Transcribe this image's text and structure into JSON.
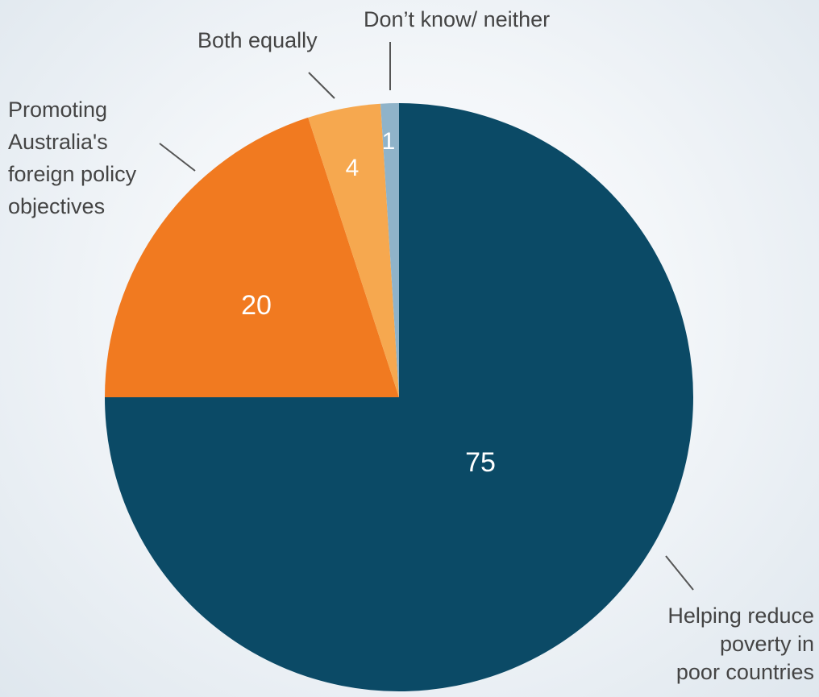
{
  "chart_data": {
    "type": "pie",
    "slices": [
      {
        "label": "Helping reduce poverty in poor countries",
        "label_lines": [
          "Helping reduce",
          "poverty in",
          "poor countries"
        ],
        "value": 75,
        "color": "#0b4a66"
      },
      {
        "label": "Promoting Australia's foreign policy objectives",
        "label_lines": [
          "Promoting",
          "Australia's",
          "foreign policy",
          "objectives"
        ],
        "value": 20,
        "color": "#f17a20"
      },
      {
        "label": "Both equally",
        "label_lines": [
          "Both equally"
        ],
        "value": 4,
        "color": "#f6a84f"
      },
      {
        "label": "Don't know/ neither",
        "label_lines": [
          "Don’t know/ neither"
        ],
        "value": 1,
        "color": "#8fb3c9"
      }
    ],
    "data_labels": [
      "75",
      "20",
      "4",
      "1"
    ],
    "start_angle": "12 o'clock",
    "direction": "clockwise",
    "legend": "none"
  }
}
